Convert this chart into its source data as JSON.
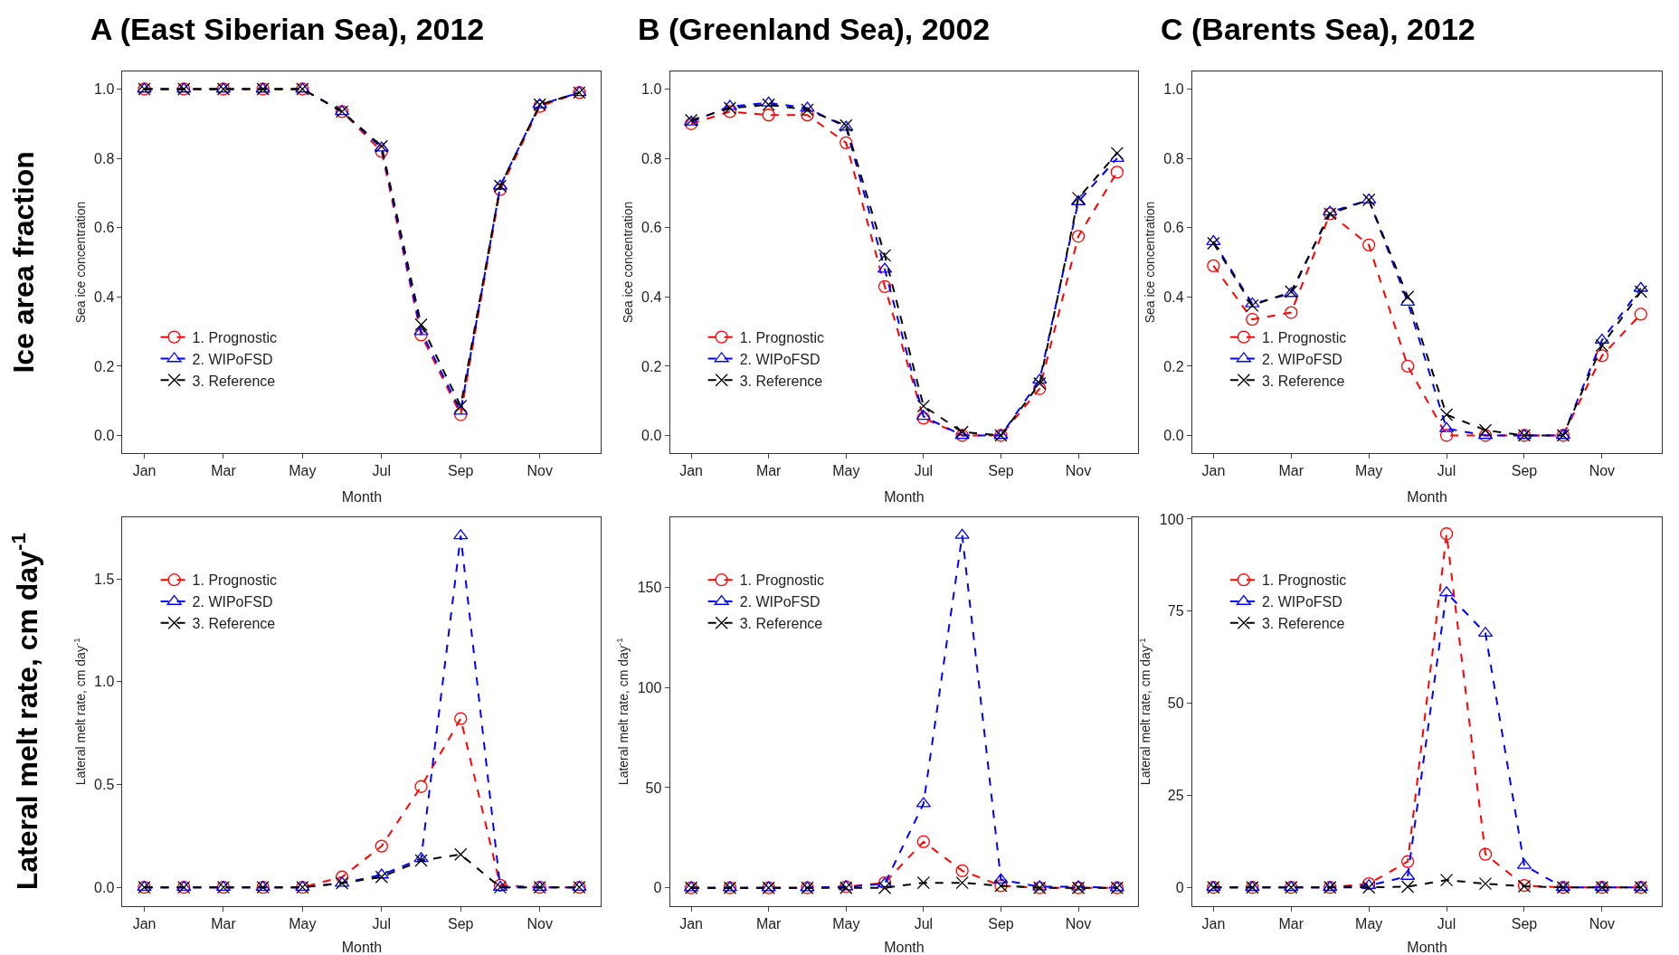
{
  "chart_data": [
    {
      "type": "line",
      "title": "A (East Siberian Sea), 2012",
      "xlabel": "Month",
      "ylabel": "Sea ice concentration",
      "annotations": [
        "Ice area fraction"
      ],
      "categories": [
        "Jan",
        null,
        "Mar",
        null,
        "May",
        null,
        "Jul",
        null,
        "Sep",
        null,
        "Nov",
        null
      ],
      "ylim": [
        -0.05,
        1.05
      ],
      "yticks": [
        {
          "value": 0,
          "label": "0.0"
        },
        {
          "value": 0.2,
          "label": "0.2"
        },
        {
          "value": 0.4,
          "label": "0.4"
        },
        {
          "value": 0.6,
          "label": "0.6"
        },
        {
          "value": 0.8,
          "label": "0.8"
        },
        {
          "value": 1,
          "label": "1.0"
        }
      ],
      "legend": "bottom left",
      "line_style": "dashed",
      "series": [
        {
          "name": "1. Prognostic",
          "color": "#ff0000",
          "marker": "circle",
          "values": [
            1,
            1,
            1,
            1,
            1,
            0.935,
            0.82,
            0.29,
            0.06,
            0.71,
            0.95,
            0.99
          ]
        },
        {
          "name": "2. WIPoFSD",
          "color": "#0000ff",
          "marker": "triangle",
          "values": [
            1,
            1,
            1,
            1,
            1,
            0.935,
            0.83,
            0.3,
            0.07,
            0.72,
            0.955,
            0.99
          ]
        },
        {
          "name": "3. Reference",
          "color": "#000000",
          "marker": "cross",
          "values": [
            1,
            1,
            1,
            1,
            1,
            0.935,
            0.835,
            0.32,
            0.085,
            0.72,
            0.955,
            0.99
          ]
        }
      ]
    },
    {
      "type": "line",
      "title": "B (Greenland Sea), 2002",
      "xlabel": "Month",
      "ylabel": "Sea ice concentration",
      "categories": [
        "Jan",
        null,
        "Mar",
        null,
        "May",
        null,
        "Jul",
        null,
        "Sep",
        null,
        "Nov",
        null
      ],
      "ylim": [
        -0.05,
        1.05
      ],
      "yticks": [
        {
          "value": 0,
          "label": "0.0"
        },
        {
          "value": 0.2,
          "label": "0.2"
        },
        {
          "value": 0.4,
          "label": "0.4"
        },
        {
          "value": 0.6,
          "label": "0.6"
        },
        {
          "value": 0.8,
          "label": "0.8"
        },
        {
          "value": 1,
          "label": "1.0"
        }
      ],
      "legend": "bottom left",
      "line_style": "dashed",
      "series": [
        {
          "name": "1. Prognostic",
          "color": "#ff0000",
          "marker": "circle",
          "values": [
            0.9,
            0.935,
            0.925,
            0.925,
            0.845,
            0.43,
            0.05,
            0.0,
            0.0,
            0.135,
            0.575,
            0.76
          ]
        },
        {
          "name": "2. WIPoFSD",
          "color": "#0000ff",
          "marker": "triangle",
          "values": [
            0.905,
            0.95,
            0.96,
            0.945,
            0.89,
            0.48,
            0.055,
            0.0,
            0.0,
            0.16,
            0.675,
            0.8
          ]
        },
        {
          "name": "3. Reference",
          "color": "#000000",
          "marker": "cross",
          "values": [
            0.91,
            0.945,
            0.955,
            0.94,
            0.895,
            0.52,
            0.085,
            0.01,
            0.0,
            0.15,
            0.685,
            0.815
          ]
        }
      ]
    },
    {
      "type": "line",
      "title": "C (Barents Sea), 2012",
      "xlabel": "Month",
      "ylabel": "Sea ice concentration",
      "categories": [
        "Jan",
        null,
        "Mar",
        null,
        "May",
        null,
        "Jul",
        null,
        "Sep",
        null,
        "Nov",
        null
      ],
      "ylim": [
        -0.05,
        1.05
      ],
      "yticks": [
        {
          "value": 0,
          "label": "0.0"
        },
        {
          "value": 0.2,
          "label": "0.2"
        },
        {
          "value": 0.4,
          "label": "0.4"
        },
        {
          "value": 0.6,
          "label": "0.6"
        },
        {
          "value": 0.8,
          "label": "0.8"
        },
        {
          "value": 1,
          "label": "1.0"
        }
      ],
      "legend": "bottom left",
      "line_style": "dashed",
      "series": [
        {
          "name": "1. Prognostic",
          "color": "#ff0000",
          "marker": "circle",
          "values": [
            0.49,
            0.335,
            0.355,
            0.64,
            0.55,
            0.2,
            0.0,
            0.0,
            0.0,
            0.0,
            0.23,
            0.35
          ]
        },
        {
          "name": "2. WIPoFSD",
          "color": "#0000ff",
          "marker": "triangle",
          "values": [
            0.56,
            0.38,
            0.41,
            0.645,
            0.68,
            0.385,
            0.02,
            0.0,
            0.0,
            0.0,
            0.275,
            0.425
          ]
        },
        {
          "name": "3. Reference",
          "color": "#000000",
          "marker": "cross",
          "values": [
            0.555,
            0.375,
            0.415,
            0.64,
            0.68,
            0.4,
            0.06,
            0.015,
            0.0,
            0.0,
            0.26,
            0.415
          ]
        }
      ]
    },
    {
      "type": "line",
      "xlabel": "Month",
      "ylabel": "Lateral melt rate, cm day$^{-1}$",
      "annotations": [
        "Lateral melt rate, cm day$^{-1}$"
      ],
      "categories": [
        "Jan",
        null,
        "Mar",
        null,
        "May",
        null,
        "Jul",
        null,
        "Sep",
        null,
        "Nov",
        null
      ],
      "ylim": [
        -0.09,
        1.8
      ],
      "yticks": [
        {
          "value": 0,
          "label": "0.0"
        },
        {
          "value": 0.5,
          "label": "0.5"
        },
        {
          "value": 1,
          "label": "1.0"
        },
        {
          "value": 1.5,
          "label": "1.5"
        }
      ],
      "legend": "top left",
      "line_style": "dashed",
      "series": [
        {
          "name": "1. Prognostic",
          "color": "#ff0000",
          "marker": "circle",
          "values": [
            0,
            0,
            0,
            0,
            0,
            0.05,
            0.2,
            0.49,
            0.82,
            0.01,
            0,
            0
          ]
        },
        {
          "name": "2. WIPoFSD",
          "color": "#0000ff",
          "marker": "triangle",
          "values": [
            0,
            0,
            0,
            0,
            0,
            0.02,
            0.06,
            0.14,
            1.71,
            0,
            0,
            0
          ]
        },
        {
          "name": "3. Reference",
          "color": "#000000",
          "marker": "cross",
          "values": [
            0,
            0,
            0,
            0,
            0,
            0.02,
            0.05,
            0.13,
            0.16,
            0,
            0,
            0
          ]
        }
      ]
    },
    {
      "type": "line",
      "xlabel": "Month",
      "ylabel": "Lateral melt rate, cm day$^{-1}$",
      "categories": [
        "Jan",
        null,
        "Mar",
        null,
        "May",
        null,
        "Jul",
        null,
        "Sep",
        null,
        "Nov",
        null
      ],
      "ylim": [
        -9,
        185
      ],
      "yticks": [
        0,
        50,
        100,
        150
      ],
      "legend": "top left",
      "line_style": "dashed",
      "series": [
        {
          "name": "1. Prognostic",
          "color": "#ff0000",
          "marker": "circle",
          "values": [
            0,
            0,
            0,
            0,
            0.5,
            2.5,
            23,
            8.5,
            1,
            0,
            0,
            0
          ]
        },
        {
          "name": "2. WIPoFSD",
          "color": "#0000ff",
          "marker": "triangle",
          "values": [
            0,
            0,
            0,
            0,
            0.5,
            2,
            42,
            176,
            4,
            0.5,
            0.5,
            0
          ]
        },
        {
          "name": "3. Reference",
          "color": "#000000",
          "marker": "cross",
          "values": [
            0,
            0,
            0,
            0,
            0,
            0,
            2.5,
            2.5,
            1,
            0,
            0,
            0
          ]
        }
      ]
    },
    {
      "type": "line",
      "xlabel": "Month",
      "ylabel": "Lateral melt rate, cm day$^{-1}$",
      "categories": [
        "Jan",
        null,
        "Mar",
        null,
        "May",
        null,
        "Jul",
        null,
        "Sep",
        null,
        "Nov",
        null
      ],
      "ylim": [
        -5,
        100.5
      ],
      "yticks": [
        0,
        25,
        50,
        75,
        100
      ],
      "legend": "top left",
      "line_style": "dashed",
      "series": [
        {
          "name": "1. Prognostic",
          "color": "#ff0000",
          "marker": "circle",
          "values": [
            0,
            0,
            0,
            0,
            1,
            7,
            96,
            9,
            0.5,
            0,
            0,
            0
          ]
        },
        {
          "name": "2. WIPoFSD",
          "color": "#0000ff",
          "marker": "triangle",
          "values": [
            0,
            0,
            0,
            0,
            0.5,
            3,
            80,
            69,
            6,
            0,
            0,
            0
          ]
        },
        {
          "name": "3. Reference",
          "color": "#000000",
          "marker": "cross",
          "values": [
            0,
            0,
            0,
            0,
            0,
            0.2,
            2,
            1,
            0.3,
            0,
            0,
            0
          ]
        }
      ]
    }
  ]
}
